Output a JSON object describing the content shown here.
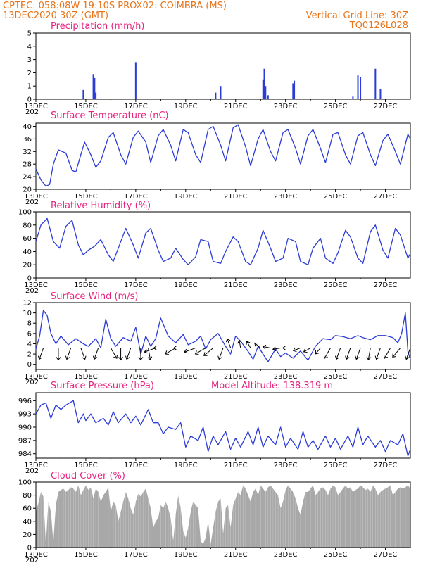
{
  "header": {
    "line1": "CPTEC:   058:08W-19:10S   PROX02: COIMBRA (MS)",
    "line2_left": "13DEC2020 30Z (GMT)",
    "line2_right": "Vertical Grid Line: 30Z",
    "line3_right": "TQ0126L028"
  },
  "colors": {
    "header": "#e8741a",
    "title": "#e6237f",
    "series": "#2b3bd6",
    "cloud": "#a8a8a8",
    "axis": "#000000"
  },
  "x_axis": {
    "day_range": [
      13,
      28
    ],
    "tick_labels": [
      "13DEC",
      "15DEC",
      "17DEC",
      "19DEC",
      "21DEC",
      "23DEC",
      "25DEC",
      "27DEC"
    ],
    "tick_days": [
      13,
      15,
      17,
      19,
      21,
      23,
      25,
      27
    ],
    "sub_label": "202"
  },
  "model_altitude": "Model Altitude: 138.319  m",
  "chart_data": [
    {
      "id": "precip",
      "type": "bar",
      "title": "Precipitation (mm/h)",
      "ylim": [
        0,
        5
      ],
      "yticks": [
        0,
        1,
        2,
        3,
        4,
        5
      ],
      "x": [
        14.9,
        15.3,
        15.35,
        15.4,
        17.0,
        20.2,
        20.4,
        22.1,
        22.15,
        22.2,
        22.3,
        23.3,
        23.35,
        25.7,
        25.9,
        26.0,
        26.6,
        26.8
      ],
      "values": [
        0.7,
        1.9,
        1.6,
        0.5,
        2.8,
        0.5,
        1.0,
        1.5,
        2.3,
        1.0,
        0.3,
        1.2,
        1.4,
        0.2,
        1.8,
        1.7,
        2.3,
        0.8
      ]
    },
    {
      "id": "temp",
      "type": "line",
      "title": "Surface Temperature (nC)",
      "ylim": [
        20,
        41
      ],
      "yticks": [
        20,
        24,
        28,
        32,
        36,
        40
      ],
      "x": [
        13.0,
        13.2,
        13.4,
        13.55,
        13.7,
        13.9,
        14.2,
        14.45,
        14.6,
        14.8,
        14.95,
        15.2,
        15.4,
        15.6,
        15.9,
        16.1,
        16.4,
        16.6,
        16.9,
        17.1,
        17.4,
        17.6,
        17.9,
        18.1,
        18.4,
        18.6,
        18.9,
        19.1,
        19.4,
        19.6,
        19.9,
        20.1,
        20.4,
        20.6,
        20.9,
        21.1,
        21.4,
        21.6,
        21.9,
        22.1,
        22.4,
        22.6,
        22.9,
        23.1,
        23.4,
        23.6,
        23.9,
        24.1,
        24.4,
        24.6,
        24.9,
        25.1,
        25.4,
        25.6,
        25.9,
        26.1,
        26.4,
        26.6,
        26.9,
        27.1,
        27.4,
        27.6,
        27.9,
        28.0
      ],
      "values": [
        26.5,
        23.0,
        21.0,
        21.5,
        28.0,
        32.5,
        31.5,
        26.0,
        25.5,
        31.0,
        35.0,
        31.0,
        27.0,
        29.0,
        36.5,
        38.0,
        31.0,
        28.0,
        36.5,
        38.5,
        35.0,
        28.5,
        37.0,
        39.0,
        34.0,
        29.0,
        39.0,
        38.0,
        31.0,
        28.5,
        39.0,
        40.0,
        34.0,
        29.0,
        39.5,
        40.5,
        33.5,
        27.5,
        36.0,
        39.0,
        32.0,
        29.0,
        38.0,
        39.0,
        33.0,
        28.0,
        37.0,
        39.0,
        33.0,
        28.5,
        37.5,
        38.0,
        31.0,
        28.0,
        37.0,
        38.0,
        31.0,
        27.5,
        35.5,
        37.5,
        32.0,
        28.0,
        37.5,
        36.0
      ]
    },
    {
      "id": "rh",
      "type": "line",
      "title": "Relative Humidity (%)",
      "ylim": [
        0,
        100
      ],
      "yticks": [
        0,
        20,
        40,
        60,
        80,
        100
      ],
      "x": [
        13.0,
        13.2,
        13.45,
        13.7,
        13.95,
        14.2,
        14.45,
        14.7,
        14.9,
        15.1,
        15.35,
        15.6,
        15.9,
        16.1,
        16.4,
        16.6,
        16.9,
        17.1,
        17.4,
        17.6,
        17.9,
        18.1,
        18.4,
        18.6,
        18.9,
        19.1,
        19.4,
        19.6,
        19.9,
        20.1,
        20.4,
        20.6,
        20.9,
        21.1,
        21.4,
        21.6,
        21.9,
        22.1,
        22.4,
        22.6,
        22.9,
        23.1,
        23.4,
        23.6,
        23.9,
        24.1,
        24.4,
        24.6,
        24.9,
        25.1,
        25.4,
        25.6,
        25.9,
        26.1,
        26.4,
        26.6,
        26.9,
        27.1,
        27.4,
        27.6,
        27.9,
        28.0
      ],
      "values": [
        55,
        80,
        90,
        55,
        45,
        78,
        87,
        50,
        35,
        42,
        48,
        58,
        35,
        25,
        55,
        75,
        50,
        30,
        68,
        75,
        42,
        25,
        30,
        45,
        28,
        20,
        32,
        58,
        55,
        25,
        22,
        40,
        62,
        55,
        25,
        20,
        45,
        72,
        45,
        25,
        30,
        60,
        55,
        25,
        20,
        45,
        60,
        30,
        22,
        38,
        72,
        62,
        30,
        22,
        70,
        80,
        42,
        30,
        75,
        65,
        30,
        37
      ]
    },
    {
      "id": "wind",
      "type": "line",
      "title": "Surface Wind (m/s)",
      "ylim": [
        -1,
        12
      ],
      "yticks": [
        0,
        2,
        4,
        6,
        8,
        10,
        12
      ],
      "x": [
        13.0,
        13.15,
        13.3,
        13.45,
        13.6,
        13.8,
        14.0,
        14.3,
        14.6,
        14.9,
        15.1,
        15.4,
        15.6,
        15.8,
        16.0,
        16.2,
        16.5,
        16.8,
        17.0,
        17.2,
        17.4,
        17.6,
        17.8,
        18.0,
        18.3,
        18.6,
        18.9,
        19.1,
        19.4,
        19.6,
        19.8,
        20.0,
        20.3,
        20.6,
        20.8,
        21.0,
        21.2,
        21.5,
        21.7,
        21.9,
        22.1,
        22.3,
        22.6,
        22.8,
        23.0,
        23.3,
        23.6,
        23.9,
        24.2,
        24.5,
        24.8,
        25.0,
        25.3,
        25.6,
        25.9,
        26.1,
        26.4,
        26.7,
        27.0,
        27.3,
        27.5,
        27.65,
        27.8,
        27.9,
        28.0
      ],
      "values": [
        3.0,
        5.5,
        10.5,
        9.5,
        6.0,
        4.0,
        5.5,
        3.8,
        5.0,
        4.0,
        3.5,
        5.0,
        3.2,
        8.8,
        5.0,
        3.5,
        5.2,
        4.5,
        7.2,
        2.0,
        5.5,
        3.5,
        5.0,
        9.0,
        5.5,
        4.2,
        5.8,
        3.8,
        4.5,
        5.5,
        3.0,
        4.8,
        6.0,
        3.5,
        2.0,
        5.5,
        4.5,
        2.5,
        1.0,
        3.5,
        2.0,
        0.5,
        3.0,
        1.5,
        2.2,
        1.2,
        2.6,
        0.8,
        3.5,
        5.0,
        4.8,
        5.6,
        5.4,
        5.0,
        5.6,
        5.2,
        4.8,
        5.6,
        5.6,
        5.2,
        4.2,
        6.0,
        10.0,
        2.5,
        1.0
      ],
      "arrows_x": [
        13.3,
        13.9,
        14.4,
        14.8,
        15.5,
        16.0,
        16.4,
        16.8,
        17.2,
        17.5,
        17.8,
        18.2,
        18.6,
        19.0,
        19.4,
        19.8,
        20.1,
        20.5,
        20.8,
        21.2,
        21.6,
        22.0,
        22.4,
        22.8,
        23.2,
        23.6,
        24.0,
        24.4,
        24.8,
        25.2,
        25.6,
        26.0,
        26.4,
        26.8,
        27.2,
        27.6,
        28.0
      ],
      "arrows_dir_deg": [
        250,
        270,
        250,
        290,
        250,
        300,
        270,
        250,
        270,
        280,
        200,
        180,
        210,
        180,
        200,
        210,
        220,
        250,
        110,
        100,
        120,
        140,
        170,
        190,
        180,
        200,
        210,
        230,
        240,
        250,
        250,
        250,
        260,
        250,
        240,
        230,
        250
      ],
      "arrows_speed": [
        4,
        4,
        4,
        4,
        4,
        4,
        4,
        4,
        4,
        4,
        4,
        4,
        4,
        4,
        4,
        4,
        4,
        4,
        3,
        2,
        2,
        2,
        2,
        2,
        2,
        2,
        2,
        2,
        4,
        4,
        4,
        4,
        4,
        4,
        4,
        4,
        4
      ]
    },
    {
      "id": "pres",
      "type": "line",
      "title": "Surface Pressure (hPa)",
      "ylim": [
        983,
        997.8
      ],
      "yticks": [
        984,
        987,
        990,
        993,
        996
      ],
      "x": [
        13.0,
        13.2,
        13.4,
        13.6,
        13.8,
        14.0,
        14.2,
        14.5,
        14.7,
        14.9,
        15.0,
        15.2,
        15.4,
        15.7,
        15.9,
        16.1,
        16.3,
        16.6,
        16.8,
        17.0,
        17.2,
        17.5,
        17.7,
        17.9,
        18.1,
        18.3,
        18.6,
        18.8,
        19.0,
        19.2,
        19.5,
        19.7,
        19.9,
        20.1,
        20.3,
        20.6,
        20.8,
        21.0,
        21.2,
        21.5,
        21.7,
        21.9,
        22.1,
        22.3,
        22.6,
        22.8,
        23.0,
        23.2,
        23.5,
        23.7,
        23.9,
        24.1,
        24.3,
        24.6,
        24.8,
        25.0,
        25.2,
        25.5,
        25.7,
        25.9,
        26.1,
        26.3,
        26.6,
        26.8,
        27.0,
        27.2,
        27.5,
        27.7,
        27.9,
        28.0
      ],
      "values": [
        993,
        995,
        995.5,
        992,
        995,
        994,
        995,
        996,
        991,
        993,
        991.5,
        993,
        991,
        992,
        990.5,
        993.5,
        991,
        993,
        991,
        992.5,
        990.5,
        994,
        991,
        991,
        988.5,
        990,
        989.5,
        991,
        985.5,
        988,
        987,
        990,
        984.5,
        988,
        986,
        989,
        985,
        987.5,
        985.5,
        989,
        986,
        990,
        985.5,
        988,
        986,
        990,
        985.5,
        987.5,
        985,
        989,
        985.5,
        987,
        985,
        988,
        985.5,
        987.5,
        985,
        988,
        985.5,
        990,
        986,
        988,
        985.5,
        987,
        984.5,
        987,
        986,
        988.5,
        983.5,
        985
      ]
    },
    {
      "id": "cloud",
      "type": "area",
      "title": "Cloud Cover (%)",
      "ylim": [
        0,
        100
      ],
      "yticks": [
        0,
        20,
        40,
        60,
        80,
        100
      ],
      "x": [
        13.0,
        13.1,
        13.2,
        13.3,
        13.4,
        13.5,
        13.6,
        13.7,
        13.8,
        13.9,
        14.0,
        14.1,
        14.2,
        14.3,
        14.4,
        14.5,
        14.6,
        14.7,
        14.8,
        14.9,
        15.0,
        15.1,
        15.2,
        15.3,
        15.4,
        15.5,
        15.6,
        15.7,
        15.8,
        15.9,
        16.0,
        16.1,
        16.2,
        16.3,
        16.4,
        16.5,
        16.6,
        16.7,
        16.8,
        16.9,
        17.0,
        17.1,
        17.2,
        17.3,
        17.4,
        17.5,
        17.6,
        17.7,
        17.8,
        17.9,
        18.0,
        18.1,
        18.2,
        18.3,
        18.4,
        18.5,
        18.6,
        18.7,
        18.8,
        18.9,
        19.0,
        19.1,
        19.2,
        19.3,
        19.4,
        19.5,
        19.6,
        19.7,
        19.8,
        19.9,
        20.0,
        20.1,
        20.2,
        20.3,
        20.4,
        20.5,
        20.6,
        20.7,
        20.8,
        20.9,
        21.0,
        21.1,
        21.2,
        21.3,
        21.4,
        21.5,
        21.6,
        21.7,
        21.8,
        21.9,
        22.0,
        22.1,
        22.2,
        22.3,
        22.4,
        22.5,
        22.6,
        22.7,
        22.8,
        22.9,
        23.0,
        23.1,
        23.2,
        23.3,
        23.4,
        23.5,
        23.6,
        23.7,
        23.8,
        23.9,
        24.0,
        24.1,
        24.2,
        24.3,
        24.4,
        24.5,
        24.6,
        24.7,
        24.8,
        24.9,
        25.0,
        25.1,
        25.2,
        25.3,
        25.4,
        25.5,
        25.6,
        25.7,
        25.8,
        25.9,
        26.0,
        26.1,
        26.2,
        26.3,
        26.4,
        26.5,
        26.6,
        26.7,
        26.8,
        26.9,
        27.0,
        27.1,
        27.2,
        27.3,
        27.4,
        27.5,
        27.6,
        27.7,
        27.8,
        27.9,
        28.0
      ],
      "values": [
        55,
        68,
        85,
        78,
        5,
        70,
        55,
        8,
        65,
        85,
        88,
        90,
        85,
        88,
        92,
        90,
        85,
        95,
        80,
        88,
        95,
        88,
        92,
        75,
        90,
        85,
        70,
        80,
        85,
        92,
        55,
        70,
        65,
        40,
        55,
        70,
        85,
        75,
        60,
        50,
        70,
        82,
        78,
        85,
        90,
        75,
        60,
        30,
        40,
        45,
        65,
        60,
        70,
        60,
        45,
        10,
        50,
        80,
        60,
        25,
        15,
        30,
        55,
        70,
        65,
        60,
        10,
        5,
        15,
        40,
        5,
        30,
        55,
        70,
        75,
        20,
        60,
        65,
        30,
        65,
        75,
        85,
        80,
        95,
        90,
        80,
        70,
        85,
        90,
        80,
        95,
        90,
        85,
        92,
        95,
        90,
        85,
        80,
        60,
        70,
        88,
        95,
        90,
        85,
        75,
        60,
        50,
        70,
        85,
        85,
        90,
        95,
        80,
        85,
        90,
        92,
        88,
        80,
        90,
        95,
        92,
        80,
        85,
        90,
        95,
        90,
        92,
        85,
        88,
        90,
        95,
        92,
        88,
        90,
        85,
        95,
        90,
        80,
        85,
        88,
        90,
        92,
        95,
        80,
        85,
        90,
        92,
        90,
        92,
        95,
        90
      ]
    }
  ]
}
